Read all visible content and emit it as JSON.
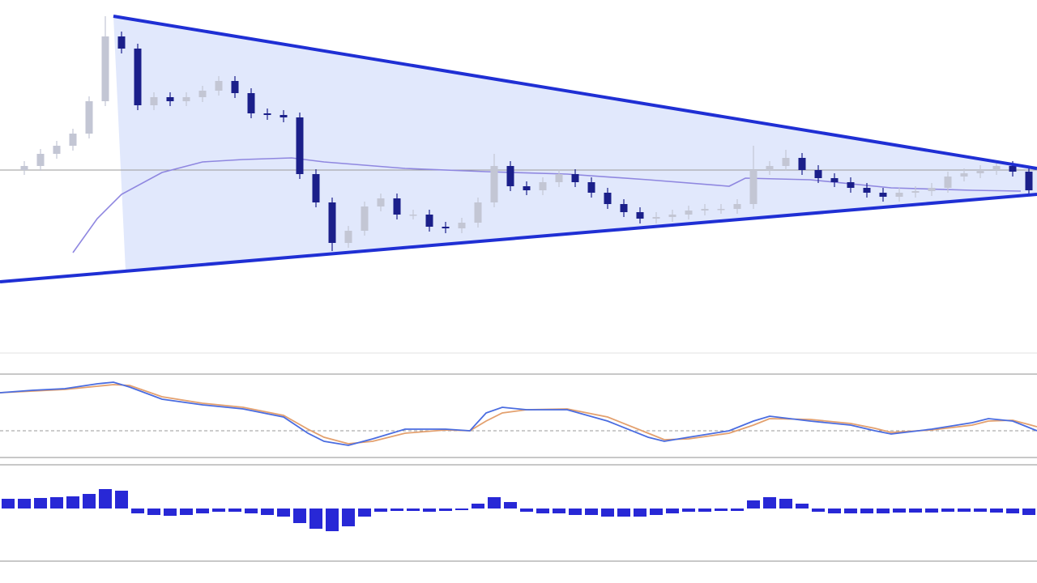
{
  "chart_data": [
    {
      "type": "candlestick",
      "x": [
        3,
        5,
        7,
        9,
        11,
        13,
        15,
        17,
        19,
        21,
        23,
        25,
        27,
        29,
        31,
        33,
        35,
        37,
        39,
        41,
        43,
        45,
        47,
        49,
        51,
        53,
        55,
        57,
        59,
        61,
        63,
        65,
        67,
        69,
        71,
        73,
        75,
        77,
        79,
        81,
        83,
        85,
        87,
        89,
        91,
        93,
        95,
        97,
        99,
        101,
        103,
        105,
        107,
        109,
        111,
        113,
        115,
        117,
        119,
        121,
        123,
        125,
        127
      ],
      "open": [
        225,
        230,
        245,
        255,
        270,
        310,
        390,
        375,
        305,
        315,
        310,
        315,
        323,
        335,
        320,
        295,
        293,
        290,
        220,
        185,
        135,
        150,
        180,
        190,
        170,
        170,
        155,
        153,
        160,
        185,
        230,
        205,
        200,
        210,
        220,
        210,
        197,
        183,
        173,
        165,
        167,
        170,
        175,
        177,
        177,
        183,
        225,
        230,
        240,
        225,
        215,
        210,
        203,
        197,
        192,
        197,
        199,
        203,
        217,
        221,
        225,
        230,
        223
      ],
      "high": [
        236,
        251,
        261,
        276,
        316,
        415,
        396,
        381,
        321,
        321,
        321,
        329,
        341,
        341,
        326,
        301,
        299,
        296,
        226,
        191,
        156,
        186,
        196,
        196,
        176,
        176,
        161,
        166,
        191,
        245,
        236,
        211,
        216,
        226,
        226,
        216,
        203,
        189,
        179,
        173,
        176,
        181,
        183,
        183,
        189,
        255,
        236,
        250,
        246,
        231,
        221,
        216,
        209,
        203,
        203,
        205,
        209,
        223,
        227,
        231,
        236,
        236,
        229
      ],
      "low": [
        219,
        224,
        239,
        249,
        264,
        304,
        369,
        299,
        299,
        304,
        304,
        309,
        317,
        314,
        289,
        287,
        284,
        214,
        179,
        125,
        129,
        144,
        174,
        164,
        164,
        149,
        147,
        147,
        154,
        179,
        199,
        194,
        194,
        204,
        204,
        191,
        177,
        167,
        159,
        159,
        161,
        164,
        169,
        171,
        171,
        177,
        219,
        224,
        219,
        209,
        204,
        197,
        191,
        186,
        186,
        191,
        193,
        197,
        211,
        215,
        219,
        217,
        194
      ],
      "close": [
        230,
        245,
        255,
        270,
        310,
        390,
        375,
        305,
        315,
        310,
        315,
        323,
        335,
        320,
        295,
        293,
        290,
        220,
        185,
        135,
        150,
        180,
        190,
        170,
        170,
        155,
        153,
        160,
        185,
        230,
        205,
        200,
        210,
        220,
        210,
        197,
        183,
        173,
        165,
        167,
        170,
        175,
        177,
        177,
        183,
        225,
        230,
        240,
        225,
        215,
        210,
        203,
        197,
        192,
        197,
        199,
        203,
        217,
        221,
        225,
        230,
        223,
        200
      ],
      "up_color": "#c3c6d4",
      "down_color": "#1b1f8a",
      "xlim": [
        0,
        128
      ],
      "ylim": [
        0,
        435
      ],
      "moving_average": {
        "x": [
          9,
          12,
          15,
          20,
          25,
          30,
          36,
          40,
          50,
          60,
          70,
          80,
          90,
          92,
          100,
          110,
          120,
          126
        ],
        "values": [
          123,
          165,
          195,
          222,
          235,
          238,
          240,
          235,
          227,
          223,
          220,
          213,
          205,
          215,
          213,
          203,
          200,
          199
        ],
        "color": "#8f87e0"
      },
      "trendlines": [
        {
          "x": [
            14,
            128
          ],
          "values": [
            415,
            227
          ]
        },
        {
          "x": [
            0,
            128
          ],
          "values": [
            87,
            195
          ]
        }
      ],
      "trend_color": "#1f2fd4",
      "fill_color": "#dce4fb",
      "hline": 225
    },
    {
      "type": "line",
      "x": [
        0,
        4,
        8,
        12,
        14,
        16,
        20,
        25,
        30,
        35,
        38,
        40,
        43,
        46,
        50,
        55,
        58,
        60,
        62,
        65,
        70,
        75,
        80,
        82,
        85,
        90,
        93,
        95,
        100,
        105,
        108,
        110,
        115,
        120,
        122,
        125,
        128
      ],
      "series": [
        {
          "color": "#e3a06e",
          "values": [
            80,
            82,
            84,
            88,
            90,
            89,
            75,
            67,
            62,
            52,
            35,
            25,
            17,
            20,
            30,
            34,
            33,
            45,
            55,
            59,
            60,
            50,
            30,
            22,
            23,
            30,
            40,
            48,
            47,
            42,
            36,
            31,
            34,
            40,
            45,
            46,
            38
          ]
        },
        {
          "color": "#4a6ce0",
          "values": [
            80,
            83,
            85,
            91,
            93,
            87,
            72,
            65,
            60,
            50,
            30,
            20,
            15,
            23,
            35,
            35,
            33,
            55,
            62,
            59,
            59,
            45,
            25,
            20,
            25,
            33,
            45,
            51,
            45,
            40,
            33,
            29,
            35,
            43,
            48,
            45,
            33
          ]
        }
      ],
      "xlim": [
        0,
        128
      ],
      "ylim": [
        0,
        100
      ],
      "hline": 33
    },
    {
      "type": "bar",
      "x": [
        1,
        3,
        5,
        7,
        9,
        11,
        13,
        15,
        17,
        19,
        21,
        23,
        25,
        27,
        29,
        31,
        33,
        35,
        37,
        39,
        41,
        43,
        45,
        47,
        49,
        51,
        53,
        55,
        57,
        59,
        61,
        63,
        65,
        67,
        69,
        71,
        73,
        75,
        77,
        79,
        81,
        83,
        85,
        87,
        89,
        91,
        93,
        95,
        97,
        99,
        101,
        103,
        105,
        107,
        109,
        111,
        113,
        115,
        117,
        119,
        121,
        123,
        125,
        127
      ],
      "values": [
        12,
        12,
        13,
        14,
        15,
        18,
        24,
        22,
        -6,
        -8,
        -9,
        -8,
        -6,
        -4,
        -4,
        -6,
        -8,
        -10,
        -18,
        -25,
        -28,
        -22,
        -10,
        -4,
        -3,
        -3,
        -4,
        -3,
        -2,
        6,
        14,
        8,
        -4,
        -6,
        -6,
        -8,
        -8,
        -10,
        -10,
        -10,
        -8,
        -6,
        -4,
        -4,
        -3,
        -3,
        10,
        14,
        12,
        6,
        -4,
        -6,
        -6,
        -6,
        -6,
        -5,
        -5,
        -5,
        -4,
        -4,
        -4,
        -5,
        -6,
        -8
      ],
      "color": "#2828d6",
      "xlim": [
        0,
        128
      ],
      "ylim": [
        -64,
        50
      ]
    }
  ]
}
